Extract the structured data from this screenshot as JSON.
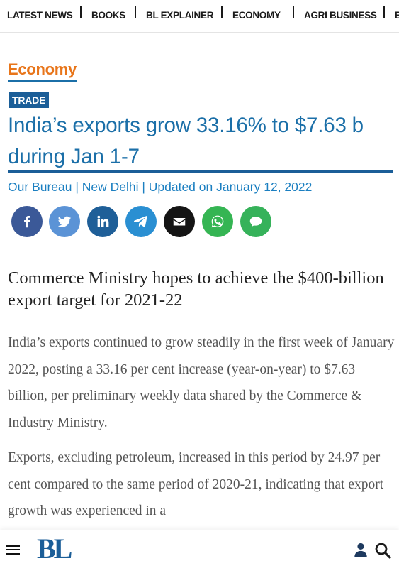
{
  "nav": {
    "items": [
      "LATEST NEWS",
      "BOOKS",
      "BL EXPLAINER",
      "ECONOMY",
      "AGRI BUSINESS",
      "B"
    ]
  },
  "article": {
    "section": "Economy",
    "tag": "TRADE",
    "headline": "India’s exports grow 33.16% to $7.63 b during Jan 1-7",
    "byline": "Our Bureau | New Delhi | Updated on January 12, 2022",
    "subhead": "Commerce Ministry hopes to achieve the $400-billion export target for 2021-22",
    "paragraphs": [
      "India’s exports continued to grow steadily in the first week of January 2022, posting a 33.16 per cent increase (year-on-year) to $7.63 billion, per preliminary weekly data shared by the Commerce & Industry Ministry.",
      "Exports, excluding petroleum, increased in this period by 24.97 per cent compared to the same period of 2020-21, indicating that export growth was experienced in a"
    ]
  },
  "share": [
    {
      "icon": "facebook-icon",
      "color": "#3b5998"
    },
    {
      "icon": "twitter-icon",
      "color": "#5b93d6"
    },
    {
      "icon": "linkedin-icon",
      "color": "#1f5f98"
    },
    {
      "icon": "telegram-icon",
      "color": "#2a8fd2"
    },
    {
      "icon": "email-icon",
      "color": "#151515"
    },
    {
      "icon": "whatsapp-icon",
      "color": "#35b553"
    },
    {
      "icon": "comment-icon",
      "color": "#36b25a"
    }
  ],
  "footer": {
    "logo": "BL"
  },
  "colors": {
    "accent": "#1b6fa8",
    "section": "#e8751a",
    "badge": "#1b5e98"
  }
}
